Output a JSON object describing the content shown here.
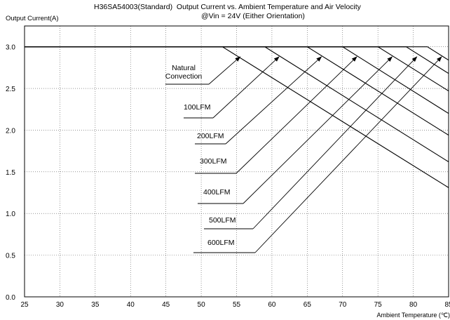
{
  "chart_data": {
    "type": "line",
    "title": "H36SA54003(Standard)  Output Current vs. Ambient Temperature and Air Velocity",
    "subtitle": "@Vin = 24V (Either Orientation)",
    "xlabel": "Ambient Temperature (℃)",
    "ylabel": "Output Current(A)",
    "xlim": [
      25,
      85
    ],
    "ylim": [
      0,
      3.25
    ],
    "x_ticks": [
      "25",
      "30",
      "35",
      "40",
      "45",
      "50",
      "55",
      "60",
      "65",
      "70",
      "75",
      "80",
      "85"
    ],
    "y_ticks": [
      "0.0",
      "0.5",
      "1.0",
      "1.5",
      "2.0",
      "2.5",
      "3.0"
    ],
    "grid": true,
    "series": [
      {
        "name": "Natural Convection",
        "x": [
          25,
          53,
          85
        ],
        "y": [
          3.0,
          3.0,
          1.31
        ]
      },
      {
        "name": "100LFM",
        "x": [
          25,
          59,
          85
        ],
        "y": [
          3.0,
          3.0,
          1.62
        ]
      },
      {
        "name": "200LFM",
        "x": [
          25,
          65,
          85
        ],
        "y": [
          3.0,
          3.0,
          1.94
        ]
      },
      {
        "name": "300LFM",
        "x": [
          25,
          70,
          85
        ],
        "y": [
          3.0,
          3.0,
          2.2
        ]
      },
      {
        "name": "400LFM",
        "x": [
          25,
          75,
          85
        ],
        "y": [
          3.0,
          3.0,
          2.47
        ]
      },
      {
        "name": "500LFM",
        "x": [
          25,
          79,
          85
        ],
        "y": [
          3.0,
          3.0,
          2.68
        ]
      },
      {
        "name": "600LFM",
        "x": [
          25,
          82,
          85
        ],
        "y": [
          3.0,
          3.0,
          2.84
        ]
      }
    ],
    "annotations": [
      {
        "text": "Natural Convection",
        "arrow_to": [
          55.5,
          2.88
        ]
      },
      {
        "text": "100LFM",
        "arrow_to": [
          61.0,
          2.88
        ]
      },
      {
        "text": "200LFM",
        "arrow_to": [
          67.0,
          2.88
        ]
      },
      {
        "text": "300LFM",
        "arrow_to": [
          72.0,
          2.88
        ]
      },
      {
        "text": "400LFM",
        "arrow_to": [
          77.0,
          2.88
        ]
      },
      {
        "text": "500LFM",
        "arrow_to": [
          80.5,
          2.88
        ]
      },
      {
        "text": "600LFM",
        "arrow_to": [
          84.0,
          2.88
        ]
      }
    ]
  }
}
